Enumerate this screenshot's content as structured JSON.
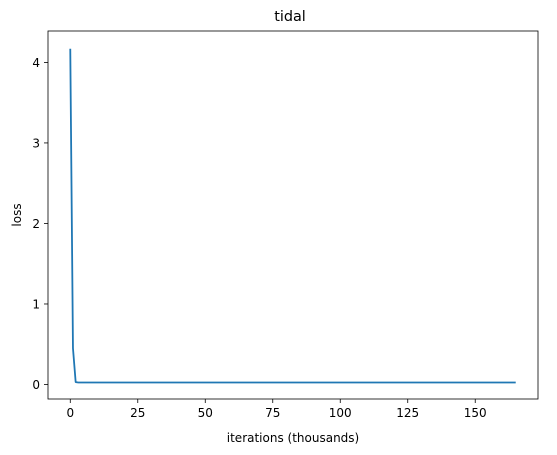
{
  "chart_data": {
    "type": "line",
    "title": "tidal",
    "xlabel": "iterations (thousands)",
    "ylabel": "loss",
    "xlim": [
      -8.25,
      173.25
    ],
    "ylim": [
      -0.18,
      4.39
    ],
    "xticks": [
      0,
      25,
      50,
      75,
      100,
      125,
      150
    ],
    "yticks": [
      0,
      1,
      2,
      3,
      4
    ],
    "grid": false,
    "series": [
      {
        "color": "#1f77b4",
        "x": [
          0,
          1,
          2,
          3,
          5,
          10,
          25,
          50,
          75,
          100,
          125,
          150,
          165
        ],
        "y": [
          4.17,
          0.45,
          0.03,
          0.025,
          0.025,
          0.025,
          0.025,
          0.025,
          0.025,
          0.025,
          0.025,
          0.025,
          0.025
        ]
      }
    ]
  }
}
